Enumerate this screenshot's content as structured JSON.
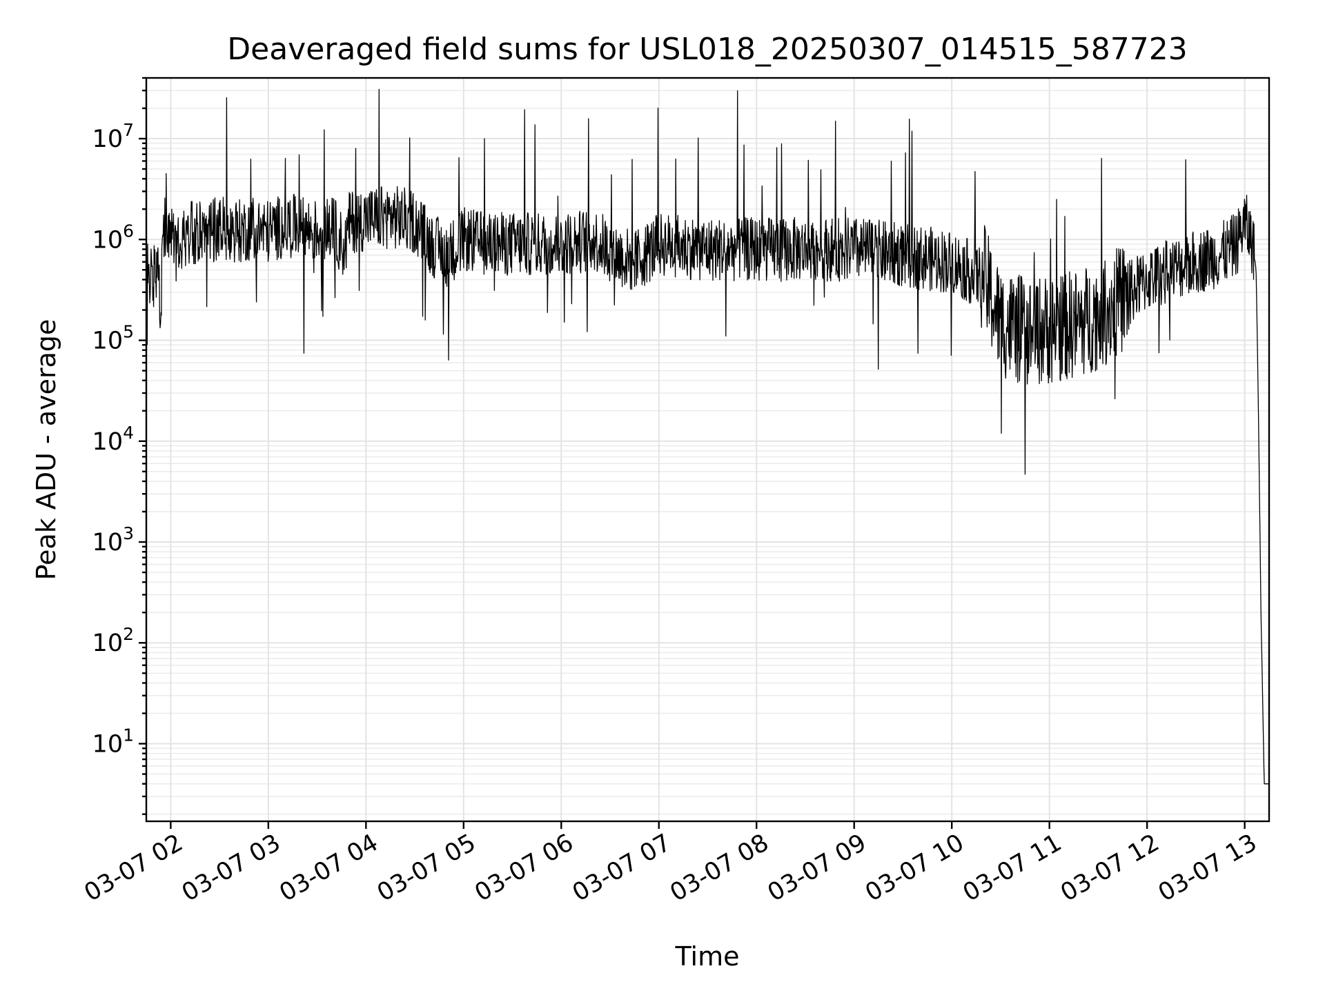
{
  "chart_data": {
    "type": "line",
    "title": "Deaveraged field sums for USL018_20250307_014515_587723",
    "xlabel": "Time",
    "ylabel": "Peak ADU - average",
    "yscale": "log",
    "ylim": [
      1.7,
      40000000
    ],
    "xlim": [
      "2025-03-07 01:45",
      "2025-03-07 13:15"
    ],
    "grid": true,
    "line_color": "#000000",
    "x_ticks": [
      "03-07 02",
      "03-07 03",
      "03-07 04",
      "03-07 05",
      "03-07 06",
      "03-07 07",
      "03-07 08",
      "03-07 09",
      "03-07 10",
      "03-07 11",
      "03-07 12",
      "03-07 13"
    ],
    "y_ticks": [
      {
        "base": "10",
        "exp": "1",
        "value": 10
      },
      {
        "base": "10",
        "exp": "2",
        "value": 100
      },
      {
        "base": "10",
        "exp": "3",
        "value": 1000
      },
      {
        "base": "10",
        "exp": "4",
        "value": 10000
      },
      {
        "base": "10",
        "exp": "5",
        "value": 100000
      },
      {
        "base": "10",
        "exp": "6",
        "value": 1000000
      },
      {
        "base": "10",
        "exp": "7",
        "value": 10000000
      }
    ],
    "series": [
      {
        "values_note": "",
        "x": [
          "2025-03-07 01:45",
          "2025-03-07 01:48",
          "2025-03-07 01:51",
          "2025-03-07 01:52",
          "2025-03-07 01:54",
          "2025-03-07 01:55",
          "2025-03-07 01:57",
          "2025-03-07 02:00",
          "2025-03-07 02:03",
          "2025-03-07 02:09",
          "2025-03-07 02:11",
          "2025-03-07 02:14",
          "2025-03-07 02:20",
          "2025-03-07 02:30",
          "2025-03-07 02:43",
          "2025-03-07 02:50",
          "2025-03-07 03:00",
          "2025-03-07 03:11",
          "2025-03-07 03:20",
          "2025-03-07 03:30",
          "2025-03-07 03:40",
          "2025-03-07 03:47",
          "2025-03-07 03:50",
          "2025-03-07 04:00",
          "2025-03-07 04:15",
          "2025-03-07 04:30",
          "2025-03-07 04:40",
          "2025-03-07 04:50",
          "2025-03-07 05:00",
          "2025-03-07 05:15",
          "2025-03-07 05:30",
          "2025-03-07 06:00",
          "2025-03-07 06:20",
          "2025-03-07 06:35",
          "2025-03-07 06:45",
          "2025-03-07 07:00",
          "2025-03-07 07:30",
          "2025-03-07 08:00",
          "2025-03-07 08:30",
          "2025-03-07 09:00",
          "2025-03-07 09:30",
          "2025-03-07 10:00",
          "2025-03-07 10:20",
          "2025-03-07 10:30",
          "2025-03-07 10:45",
          "2025-03-07 11:00",
          "2025-03-07 11:20",
          "2025-03-07 11:35",
          "2025-03-07 11:50",
          "2025-03-07 12:00",
          "2025-03-07 12:15",
          "2025-03-07 12:30",
          "2025-03-07 12:45",
          "2025-03-07 12:55",
          "2025-03-07 13:00",
          "2025-03-07 13:05",
          "2025-03-07 13:07",
          "2025-03-07 13:08",
          "2025-03-07 13:09",
          "2025-03-07 13:10",
          "2025-03-07 13:11",
          "2025-03-07 13:12",
          "2025-03-07 13:15"
        ],
        "values": [
          600000,
          400000,
          500000,
          600000,
          120000,
          1100000,
          1400000,
          1300000,
          800000,
          1000000,
          1100000,
          1200000,
          1100000,
          1300000,
          1200000,
          1300000,
          1200000,
          1400000,
          1300000,
          1200000,
          1300000,
          800000,
          1500000,
          1600000,
          1700000,
          1500000,
          900000,
          700000,
          1000000,
          900000,
          900000,
          900000,
          1000000,
          700000,
          600000,
          900000,
          800000,
          800000,
          800000,
          800000,
          700000,
          600000,
          400000,
          150000,
          120000,
          130000,
          150000,
          200000,
          300000,
          400000,
          500000,
          600000,
          700000,
          900000,
          1500000,
          900000,
          500000,
          60000,
          4000,
          200,
          30,
          4,
          4
        ]
      }
    ]
  }
}
